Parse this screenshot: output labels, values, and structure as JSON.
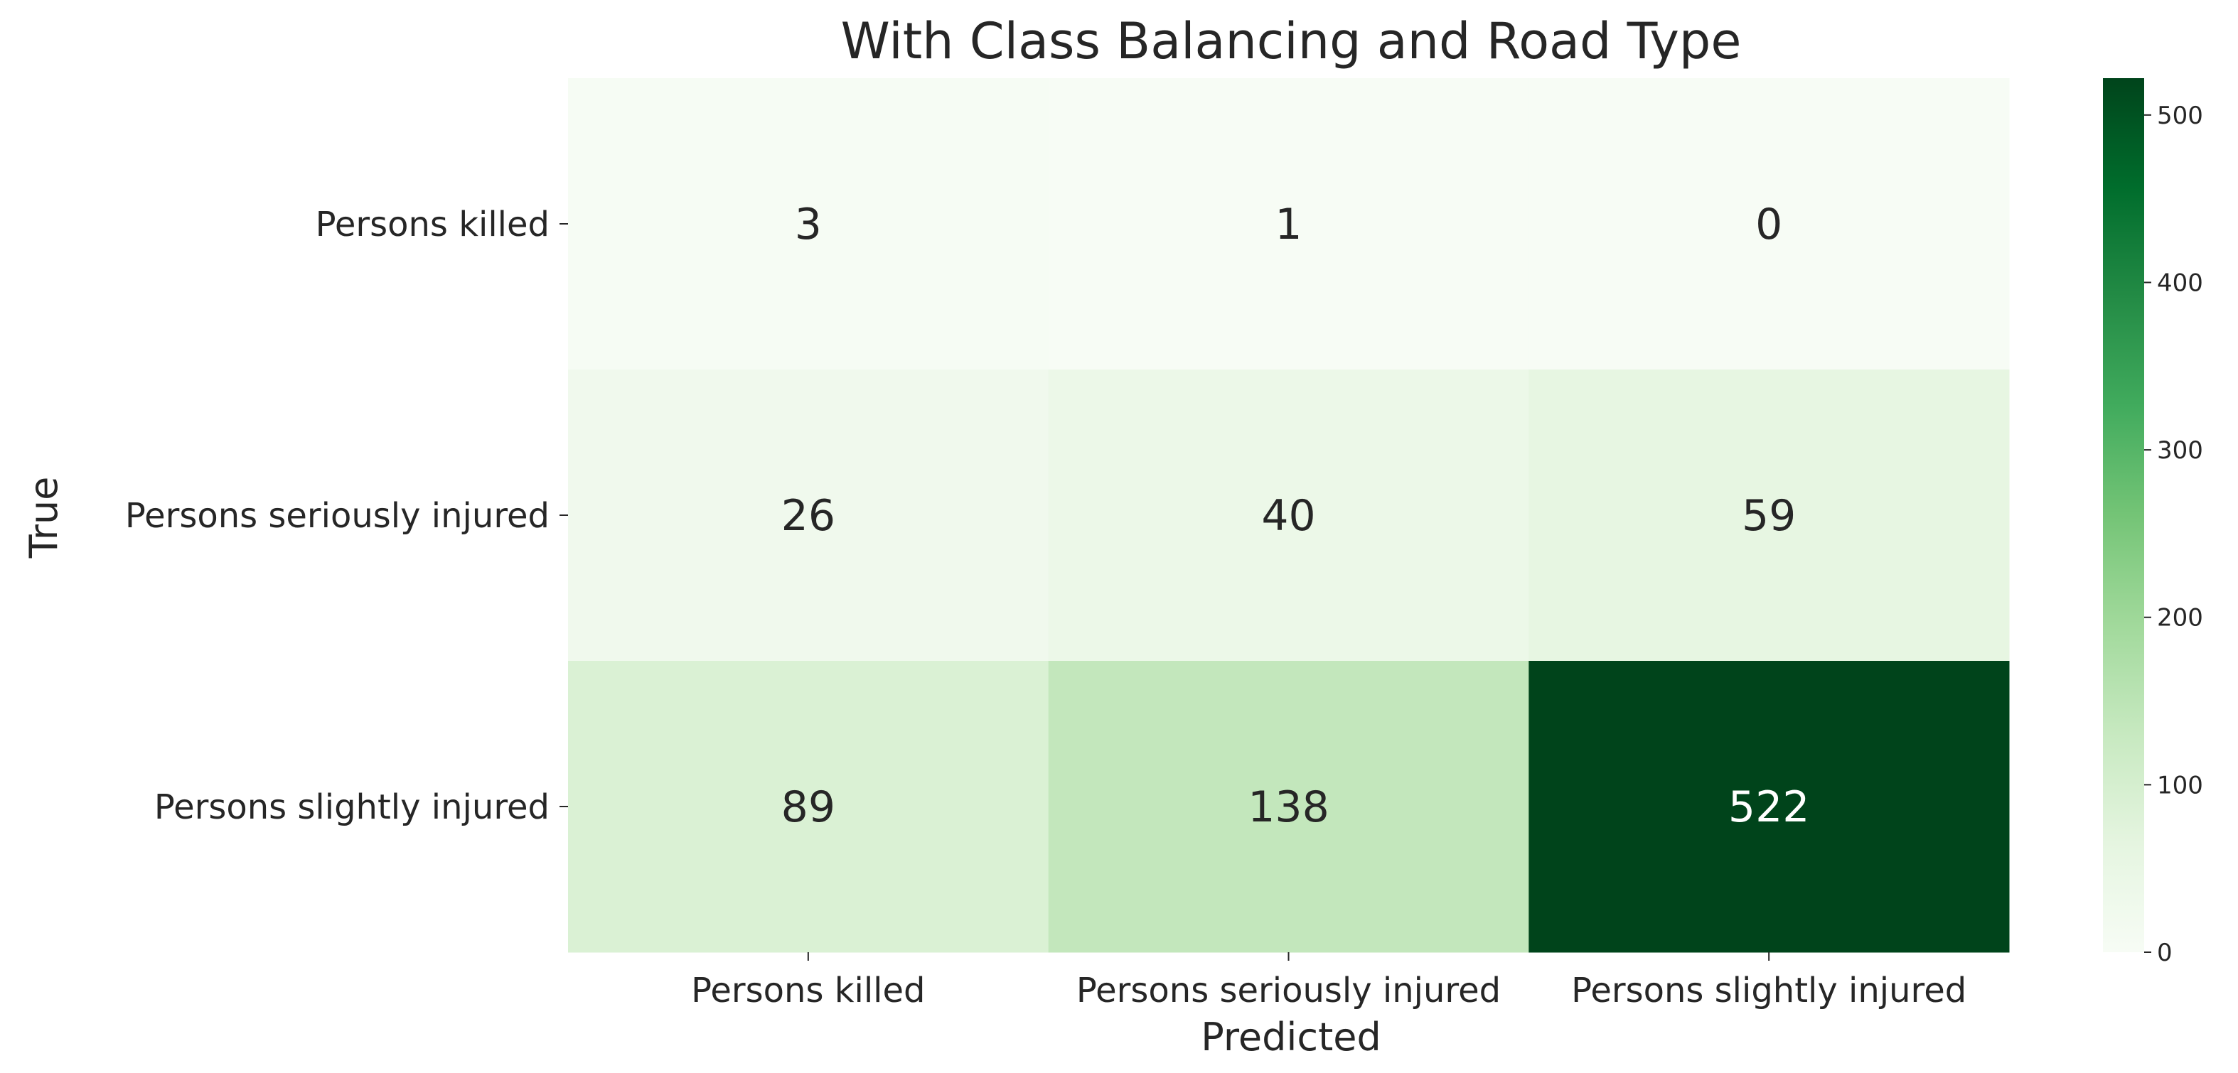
{
  "chart_data": {
    "type": "heatmap",
    "title": "With Class Balancing and Road Type",
    "xlabel": "Predicted",
    "ylabel": "True",
    "x_categories": [
      "Persons killed",
      "Persons seriously injured",
      "Persons slightly injured"
    ],
    "y_categories": [
      "Persons killed",
      "Persons seriously injured",
      "Persons slightly injured"
    ],
    "values": [
      [
        3,
        1,
        0
      ],
      [
        26,
        40,
        59
      ],
      [
        89,
        138,
        522
      ]
    ],
    "colormap": "Greens",
    "colorbar": {
      "range": [
        0,
        522
      ],
      "ticks": [
        0,
        100,
        200,
        300,
        400,
        500
      ]
    },
    "colors": {
      "cmap_low": "#f7fcf5",
      "cmap_high": "#00441b",
      "text_dark": "#262626",
      "text_light": "#ffffff"
    },
    "grid": false
  }
}
